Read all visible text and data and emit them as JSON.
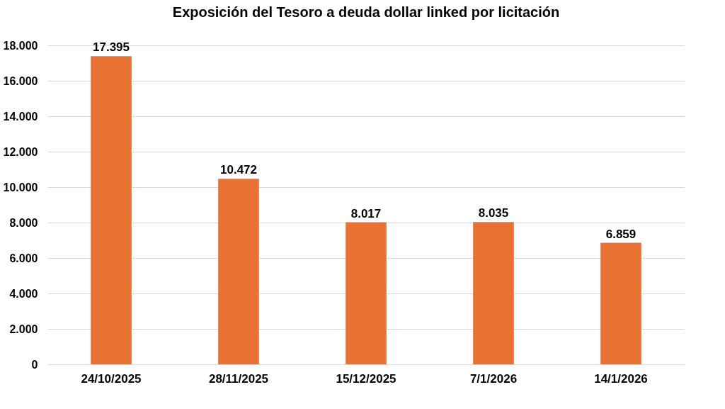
{
  "chart_data": {
    "type": "bar",
    "title": "Exposición del Tesoro a deuda dollar linked por licitación",
    "categories": [
      "24/10/2025",
      "28/11/2025",
      "15/12/2025",
      "7/1/2026",
      "14/1/2026"
    ],
    "values": [
      17395,
      10472,
      8017,
      8035,
      6859
    ],
    "value_labels": [
      "17.395",
      "10.472",
      "8.017",
      "8.035",
      "6.859"
    ],
    "color": "#e97132",
    "ylim": [
      0,
      18000
    ],
    "yticks": [
      0,
      {
        "value": 2000,
        "label": "2.000"
      },
      {
        "value": 4000,
        "label": "4.000"
      },
      {
        "value": 6000,
        "label": "6.000"
      },
      {
        "value": 8000,
        "label": "8.000"
      },
      {
        "value": 10000,
        "label": "10.000"
      },
      {
        "value": 12000,
        "label": "12.000"
      },
      {
        "value": 14000,
        "label": "14.000"
      },
      {
        "value": 16000,
        "label": "16.000"
      },
      {
        "value": 18000,
        "label": "18.000"
      }
    ],
    "grid": "y"
  }
}
